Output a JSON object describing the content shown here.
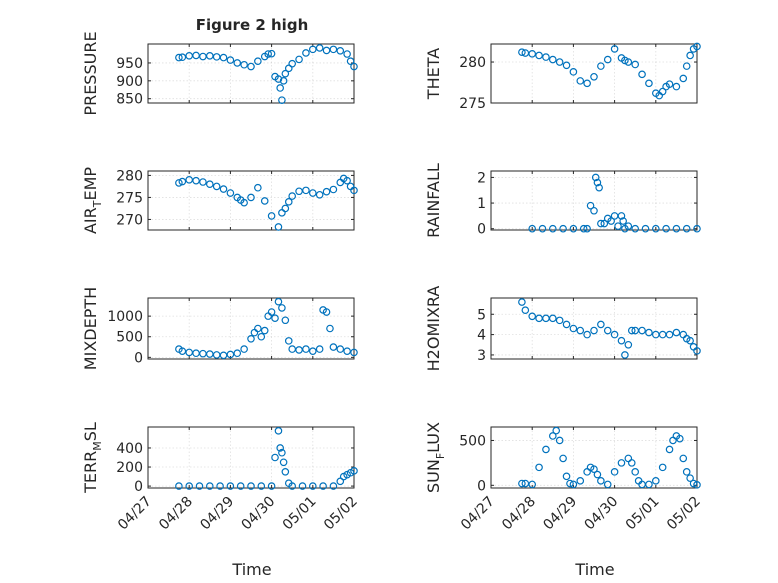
{
  "figure": {
    "title": "Figure 2 high"
  },
  "colors": {
    "marker": "#0072BD",
    "axis": "#262626",
    "background": "#ffffff"
  },
  "x_ticks": [
    "04/27",
    "04/28",
    "04/29",
    "04/30",
    "05/01",
    "05/02"
  ],
  "chart_data": [
    {
      "type": "scatter",
      "title": "Figure 2 high",
      "ylabel": "PRESSURE",
      "xlabel": "",
      "ylim": [
        838,
        1003
      ],
      "yticks": [
        850,
        900,
        950
      ],
      "grid": true,
      "x": [
        "04/27 18:00",
        "04/27 20:00",
        "04/28 00:00",
        "04/28 04:00",
        "04/28 08:00",
        "04/28 12:00",
        "04/28 16:00",
        "04/28 20:00",
        "04/29 00:00",
        "04/29 04:00",
        "04/29 08:00",
        "04/29 12:00",
        "04/29 16:00",
        "04/29 20:00",
        "04/29 22:00",
        "04/30 00:00",
        "04/30 02:00",
        "04/30 04:00",
        "04/30 05:00",
        "04/30 06:00",
        "04/30 07:00",
        "04/30 08:00",
        "04/30 10:00",
        "04/30 12:00",
        "04/30 16:00",
        "04/30 20:00",
        "05/01 00:00",
        "05/01 04:00",
        "05/01 08:00",
        "05/01 12:00",
        "05/01 16:00",
        "05/01 20:00",
        "05/01 22:00",
        "05/02 00:00"
      ],
      "y": [
        965,
        966,
        970,
        971,
        968,
        970,
        967,
        965,
        958,
        950,
        945,
        940,
        955,
        968,
        975,
        976,
        912,
        905,
        880,
        846,
        900,
        920,
        935,
        948,
        960,
        978,
        988,
        992,
        985,
        988,
        984,
        975,
        955,
        940
      ]
    },
    {
      "type": "scatter",
      "ylabel": "THETA",
      "xlabel": "",
      "ylim": [
        275,
        282.2
      ],
      "yticks": [
        275,
        280
      ],
      "grid": true,
      "x": [
        "04/27 18:00",
        "04/27 20:00",
        "04/28 00:00",
        "04/28 04:00",
        "04/28 08:00",
        "04/28 12:00",
        "04/28 16:00",
        "04/28 20:00",
        "04/29 00:00",
        "04/29 04:00",
        "04/29 08:00",
        "04/29 12:00",
        "04/29 16:00",
        "04/29 20:00",
        "04/30 00:00",
        "04/30 04:00",
        "04/30 06:00",
        "04/30 08:00",
        "04/30 12:00",
        "04/30 16:00",
        "04/30 20:00",
        "05/01 00:00",
        "05/01 02:00",
        "05/01 04:00",
        "05/01 06:00",
        "05/01 08:00",
        "05/01 12:00",
        "05/01 16:00",
        "05/01 18:00",
        "05/01 20:00",
        "05/01 22:00",
        "05/02 00:00"
      ],
      "y": [
        281.2,
        281.1,
        281.0,
        280.8,
        280.6,
        280.3,
        280.0,
        279.6,
        278.8,
        277.7,
        277.4,
        278.2,
        279.5,
        280.3,
        281.6,
        280.5,
        280.2,
        280.0,
        279.7,
        278.5,
        277.4,
        276.2,
        275.9,
        276.4,
        277.0,
        277.3,
        277.0,
        278.0,
        279.5,
        280.8,
        281.6,
        281.9
      ]
    },
    {
      "type": "scatter",
      "ylabel": "AIR_TEMP",
      "xlabel": "",
      "ylim": [
        267.6,
        281
      ],
      "yticks": [
        270,
        275,
        280
      ],
      "grid": true,
      "x": [
        "04/27 18:00",
        "04/27 20:00",
        "04/28 00:00",
        "04/28 04:00",
        "04/28 08:00",
        "04/28 12:00",
        "04/28 16:00",
        "04/28 20:00",
        "04/29 00:00",
        "04/29 04:00",
        "04/29 06:00",
        "04/29 08:00",
        "04/29 12:00",
        "04/29 16:00",
        "04/29 20:00",
        "04/30 00:00",
        "04/30 04:00",
        "04/30 06:00",
        "04/30 08:00",
        "04/30 10:00",
        "04/30 12:00",
        "04/30 16:00",
        "04/30 20:00",
        "05/01 00:00",
        "05/01 04:00",
        "05/01 08:00",
        "05/01 12:00",
        "05/01 16:00",
        "05/01 18:00",
        "05/01 20:00",
        "05/01 22:00",
        "05/02 00:00"
      ],
      "y": [
        278.3,
        278.6,
        279.0,
        278.8,
        278.5,
        278.0,
        277.5,
        276.9,
        276.0,
        275.0,
        274.4,
        273.8,
        275.0,
        277.2,
        274.2,
        270.8,
        268.3,
        271.5,
        272.5,
        274.0,
        275.3,
        276.4,
        276.6,
        276.0,
        275.6,
        276.3,
        276.8,
        278.4,
        279.3,
        278.8,
        277.5,
        276.6
      ]
    },
    {
      "type": "scatter",
      "ylabel": "RAINFALL",
      "xlabel": "",
      "ylim": [
        -0.05,
        2.25
      ],
      "yticks": [
        0,
        1,
        2
      ],
      "grid": true,
      "x": [
        "04/28 00:00",
        "04/28 06:00",
        "04/28 12:00",
        "04/28 18:00",
        "04/29 00:00",
        "04/29 06:00",
        "04/29 08:00",
        "04/29 10:00",
        "04/29 12:00",
        "04/29 13:00",
        "04/29 14:00",
        "04/29 15:00",
        "04/29 16:00",
        "04/29 18:00",
        "04/29 20:00",
        "04/29 22:00",
        "04/30 00:00",
        "04/30 02:00",
        "04/30 04:00",
        "04/30 05:00",
        "04/30 06:00",
        "04/30 08:00",
        "04/30 12:00",
        "04/30 18:00",
        "05/01 00:00",
        "05/01 06:00",
        "05/01 12:00",
        "05/01 18:00",
        "05/02 00:00"
      ],
      "y": [
        0,
        0,
        0,
        0,
        0,
        0,
        0,
        0.9,
        0.7,
        2.0,
        1.8,
        1.6,
        0.2,
        0.2,
        0.4,
        0.3,
        0.5,
        0.1,
        0.5,
        0.3,
        0,
        0.1,
        0,
        0,
        0,
        0,
        0,
        0,
        0
      ]
    },
    {
      "type": "scatter",
      "ylabel": "MIXDEPTH",
      "xlabel": "",
      "ylim": [
        -40,
        1440
      ],
      "yticks": [
        0,
        500,
        1000
      ],
      "grid": true,
      "x": [
        "04/27 18:00",
        "04/27 20:00",
        "04/28 00:00",
        "04/28 04:00",
        "04/28 08:00",
        "04/28 12:00",
        "04/28 16:00",
        "04/28 20:00",
        "04/29 00:00",
        "04/29 04:00",
        "04/29 08:00",
        "04/29 12:00",
        "04/29 14:00",
        "04/29 16:00",
        "04/29 18:00",
        "04/29 20:00",
        "04/29 22:00",
        "04/30 00:00",
        "04/30 02:00",
        "04/30 04:00",
        "04/30 06:00",
        "04/30 08:00",
        "04/30 10:00",
        "04/30 12:00",
        "04/30 16:00",
        "04/30 20:00",
        "05/01 00:00",
        "05/01 04:00",
        "05/01 06:00",
        "05/01 08:00",
        "05/01 10:00",
        "05/01 12:00",
        "05/01 16:00",
        "05/01 20:00",
        "05/02 00:00"
      ],
      "y": [
        200,
        150,
        120,
        100,
        90,
        80,
        60,
        50,
        70,
        100,
        200,
        450,
        600,
        700,
        500,
        650,
        1000,
        1100,
        950,
        1350,
        1200,
        900,
        400,
        200,
        180,
        200,
        150,
        200,
        1150,
        1100,
        700,
        250,
        200,
        150,
        120
      ]
    },
    {
      "type": "scatter",
      "ylabel": "H2OMIXRA",
      "xlabel": "",
      "ylim": [
        2.8,
        5.8
      ],
      "yticks": [
        3,
        4,
        5
      ],
      "grid": true,
      "x": [
        "04/27 18:00",
        "04/27 20:00",
        "04/28 00:00",
        "04/28 04:00",
        "04/28 08:00",
        "04/28 12:00",
        "04/28 16:00",
        "04/28 20:00",
        "04/29 00:00",
        "04/29 04:00",
        "04/29 08:00",
        "04/29 12:00",
        "04/29 16:00",
        "04/29 20:00",
        "04/30 00:00",
        "04/30 04:00",
        "04/30 06:00",
        "04/30 08:00",
        "04/30 10:00",
        "04/30 12:00",
        "04/30 16:00",
        "04/30 20:00",
        "05/01 00:00",
        "05/01 04:00",
        "05/01 08:00",
        "05/01 12:00",
        "05/01 16:00",
        "05/01 18:00",
        "05/01 20:00",
        "05/01 22:00",
        "05/02 00:00"
      ],
      "y": [
        5.6,
        5.2,
        4.9,
        4.8,
        4.8,
        4.8,
        4.7,
        4.5,
        4.3,
        4.2,
        4.0,
        4.2,
        4.5,
        4.2,
        4.0,
        3.7,
        3.0,
        3.5,
        4.2,
        4.2,
        4.2,
        4.1,
        4.0,
        4.0,
        4.0,
        4.1,
        4.0,
        3.8,
        3.7,
        3.4,
        3.2
      ]
    },
    {
      "type": "scatter",
      "ylabel": "TERR_MSL",
      "xlabel": "Time",
      "ylim": [
        -20,
        620
      ],
      "yticks": [
        0,
        200,
        400
      ],
      "grid": true,
      "x": [
        "04/27 18:00",
        "04/28 00:00",
        "04/28 06:00",
        "04/28 12:00",
        "04/28 18:00",
        "04/29 00:00",
        "04/29 06:00",
        "04/29 12:00",
        "04/29 18:00",
        "04/30 00:00",
        "04/30 02:00",
        "04/30 04:00",
        "04/30 05:00",
        "04/30 06:00",
        "04/30 07:00",
        "04/30 08:00",
        "04/30 10:00",
        "04/30 12:00",
        "04/30 18:00",
        "05/01 00:00",
        "05/01 06:00",
        "05/01 12:00",
        "05/01 16:00",
        "05/01 18:00",
        "05/01 20:00",
        "05/01 22:00",
        "05/02 00:00"
      ],
      "y": [
        0,
        0,
        0,
        0,
        0,
        0,
        0,
        0,
        0,
        0,
        300,
        580,
        400,
        350,
        250,
        150,
        30,
        0,
        0,
        0,
        0,
        0,
        50,
        100,
        120,
        140,
        160
      ]
    },
    {
      "type": "scatter",
      "ylabel": "SUN_FLUX",
      "xlabel": "Time",
      "ylim": [
        -30,
        650
      ],
      "yticks": [
        0,
        500
      ],
      "grid": true,
      "x": [
        "04/27 18:00",
        "04/27 20:00",
        "04/28 00:00",
        "04/28 04:00",
        "04/28 08:00",
        "04/28 12:00",
        "04/28 14:00",
        "04/28 16:00",
        "04/28 18:00",
        "04/28 20:00",
        "04/28 22:00",
        "04/29 00:00",
        "04/29 04:00",
        "04/29 08:00",
        "04/29 10:00",
        "04/29 12:00",
        "04/29 14:00",
        "04/29 16:00",
        "04/29 20:00",
        "04/30 00:00",
        "04/30 04:00",
        "04/30 08:00",
        "04/30 10:00",
        "04/30 12:00",
        "04/30 14:00",
        "04/30 16:00",
        "04/30 20:00",
        "05/01 00:00",
        "05/01 04:00",
        "05/01 08:00",
        "05/01 10:00",
        "05/01 12:00",
        "05/01 14:00",
        "05/01 16:00",
        "05/01 18:00",
        "05/01 20:00",
        "05/01 22:00",
        "05/02 00:00"
      ],
      "y": [
        20,
        20,
        10,
        200,
        400,
        550,
        610,
        500,
        300,
        100,
        20,
        10,
        50,
        150,
        200,
        180,
        120,
        50,
        10,
        150,
        250,
        300,
        250,
        150,
        50,
        10,
        10,
        50,
        200,
        400,
        500,
        550,
        520,
        300,
        150,
        80,
        20,
        5
      ]
    }
  ]
}
